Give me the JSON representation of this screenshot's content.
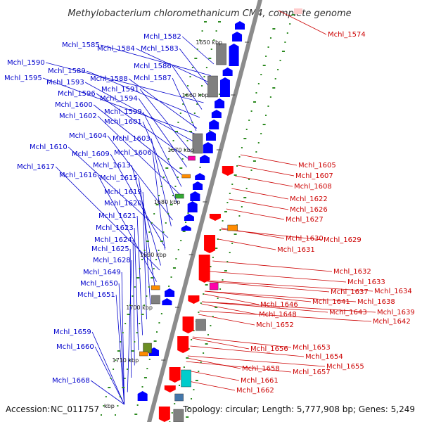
{
  "title": "Methylobacterium chloromethanicum CM4, complete genome",
  "footer": {
    "accession_label": "Accession:",
    "accession": "NC_011757",
    "accession_unit": "kbp",
    "topology_text": "Topology: circular; Length: 5,777,908 bp; Genes: 5,249"
  },
  "colors": {
    "forward": "#0000ff",
    "reverse": "#ff0000",
    "backbone": "#8c8c8c",
    "dot": "#2e8b22",
    "label_forward": "#0000cc",
    "label_reverse": "#cc0000",
    "orange": "#ff8c00",
    "magenta": "#ff00aa",
    "cyan": "#00cccc",
    "olive": "#6b8e23",
    "gray": "#808080"
  },
  "ticks": [
    "1650 kbp",
    "1660 kbp",
    "1670 kbp",
    "1680 kbp",
    "1690 kbp",
    "1700 kbp",
    "1710 kbp"
  ],
  "left_labels": [
    "Mchl_1582",
    "Mchl_1585",
    "Mchl_1584",
    "Mchl_1583",
    "Mchl_1590",
    "Mchl_1586",
    "Mchl_1589",
    "Mchl_1588",
    "Mchl_1587",
    "Mchl_1595",
    "Mchl_1593",
    "Mchl_1591",
    "Mchl_1596",
    "Mchl_1594",
    "Mchl_1600",
    "Mchl_1599",
    "Mchl_1602",
    "Mchl_1601",
    "Mchl_1604",
    "Mchl_1603",
    "Mchl_1610",
    "Mchl_1609",
    "Mchl_1606",
    "Mchl_1613",
    "Mchl_1617",
    "Mchl_1616",
    "Mchl_1615",
    "Mchl_1619",
    "Mchl_1620",
    "Mchl_1621",
    "Mchl_1623",
    "Mchl_1624",
    "Mchl_1625",
    "Mchl_1628",
    "Mchl_1649",
    "Mchl_1650",
    "Mchl_1651",
    "Mchl_1659",
    "Mchl_1660",
    "Mchl_1668"
  ],
  "right_labels": [
    "Mchl_1574",
    "Mchl_1605",
    "Mchl_1607",
    "Mchl_1608",
    "Mchl_1622",
    "Mchl_1626",
    "Mchl_1627",
    "Mchl_1630",
    "Mchl_1629",
    "Mchl_1631",
    "Mchl_1632",
    "Mchl_1633",
    "Mchl_1637",
    "Mchl_1634",
    "Mchl_1641",
    "Mchl_1638",
    "Mchl_1646",
    "Mchl_1643",
    "Mchl_1639",
    "Mchl_1648",
    "Mchl_1642",
    "Mchl_1652",
    "Mchl_1653",
    "Mchl_1656",
    "Mchl_1654",
    "Mchl_1655",
    "Mchl_1658",
    "Mchl_1657",
    "Mchl_1661",
    "Mchl_1662"
  ]
}
